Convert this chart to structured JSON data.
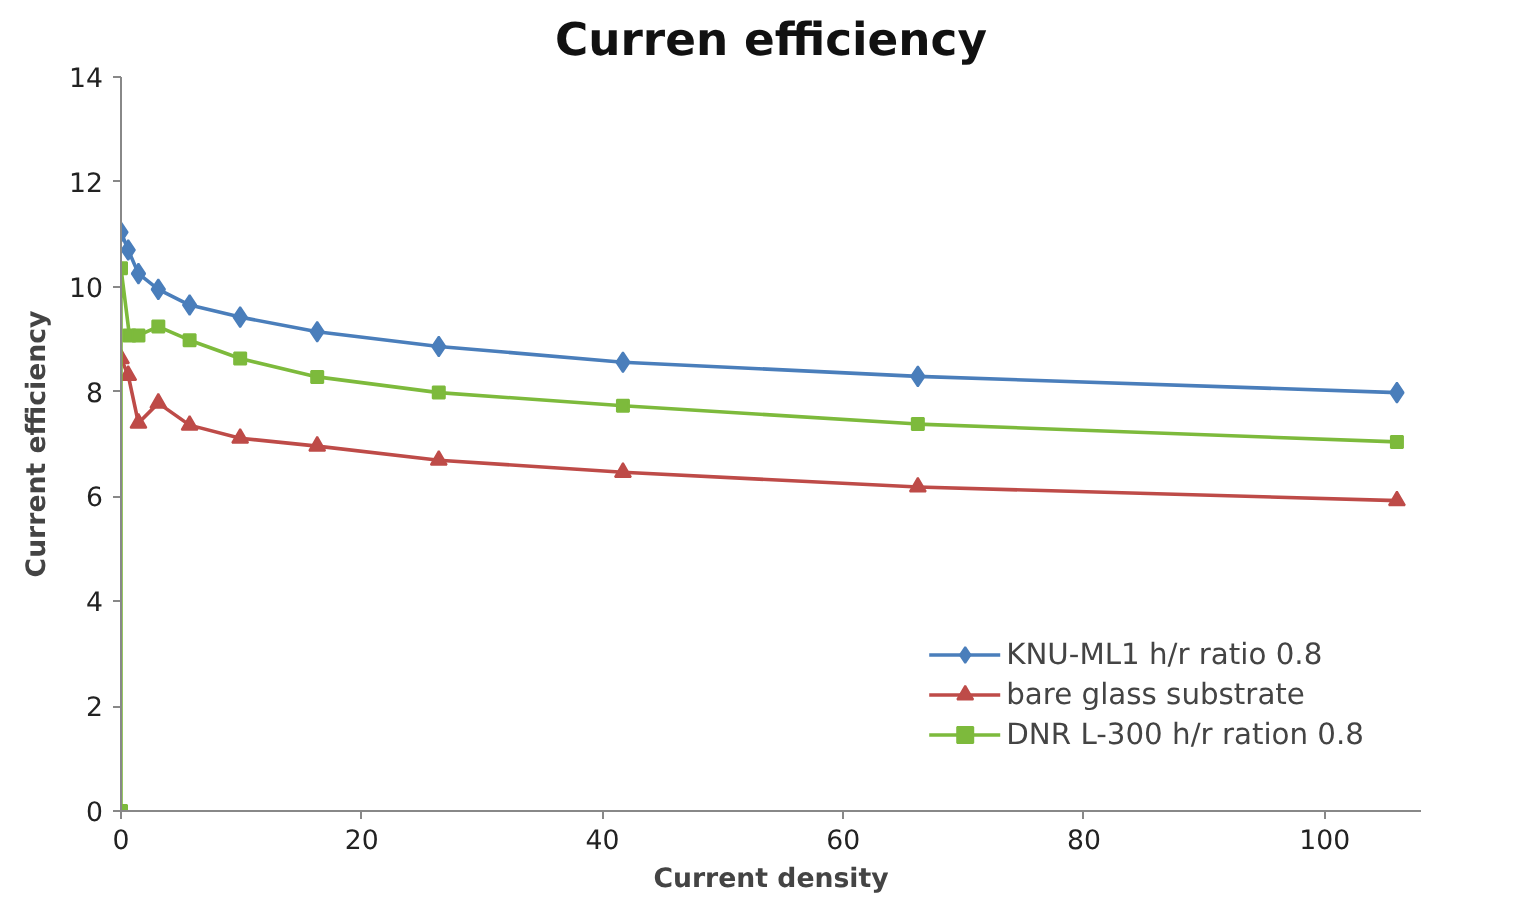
{
  "chart_data": {
    "type": "line",
    "title": "Curren efficiency",
    "xlabel": "Current density",
    "ylabel": "Current efficiency",
    "xlim": [
      0,
      108
    ],
    "xticks": [
      0,
      20,
      40,
      60,
      80,
      100
    ],
    "ylim": [
      0,
      14
    ],
    "yticks": [
      0,
      2,
      4,
      6,
      8,
      10,
      12,
      14
    ],
    "grid": false,
    "legend": "bottom right",
    "series": [
      {
        "name": "KNU-ML1 h/r ratio 0.8",
        "color": "#4a7ebb",
        "marker": "diamond",
        "x": [
          0,
          0.6,
          1.45,
          3.1,
          5.7,
          9.9,
          16.3,
          26.4,
          41.7,
          66.2,
          106
        ],
        "values": [
          11.04,
          10.7,
          10.25,
          9.95,
          9.65,
          9.42,
          9.14,
          8.86,
          8.56,
          8.29,
          7.98
        ]
      },
      {
        "name": "bare glass substrate",
        "color": "#be4b48",
        "marker": "triangle",
        "x": [
          0,
          0.6,
          1.45,
          3.1,
          5.7,
          9.9,
          16.3,
          26.4,
          41.7,
          66.2,
          106
        ],
        "values": [
          8.63,
          8.31,
          7.4,
          7.78,
          7.36,
          7.11,
          6.96,
          6.69,
          6.46,
          6.18,
          5.92
        ]
      },
      {
        "name": "DNR L-300 h/r ration 0.8",
        "color": "#7dba3c",
        "marker": "square",
        "x": [
          0,
          0,
          0.7,
          1.45,
          3.1,
          5.7,
          9.9,
          16.3,
          26.4,
          41.7,
          66.2,
          106
        ],
        "values": [
          0,
          10.35,
          9.07,
          9.07,
          9.24,
          8.98,
          8.63,
          8.28,
          7.98,
          7.73,
          7.38,
          7.04
        ]
      }
    ]
  }
}
